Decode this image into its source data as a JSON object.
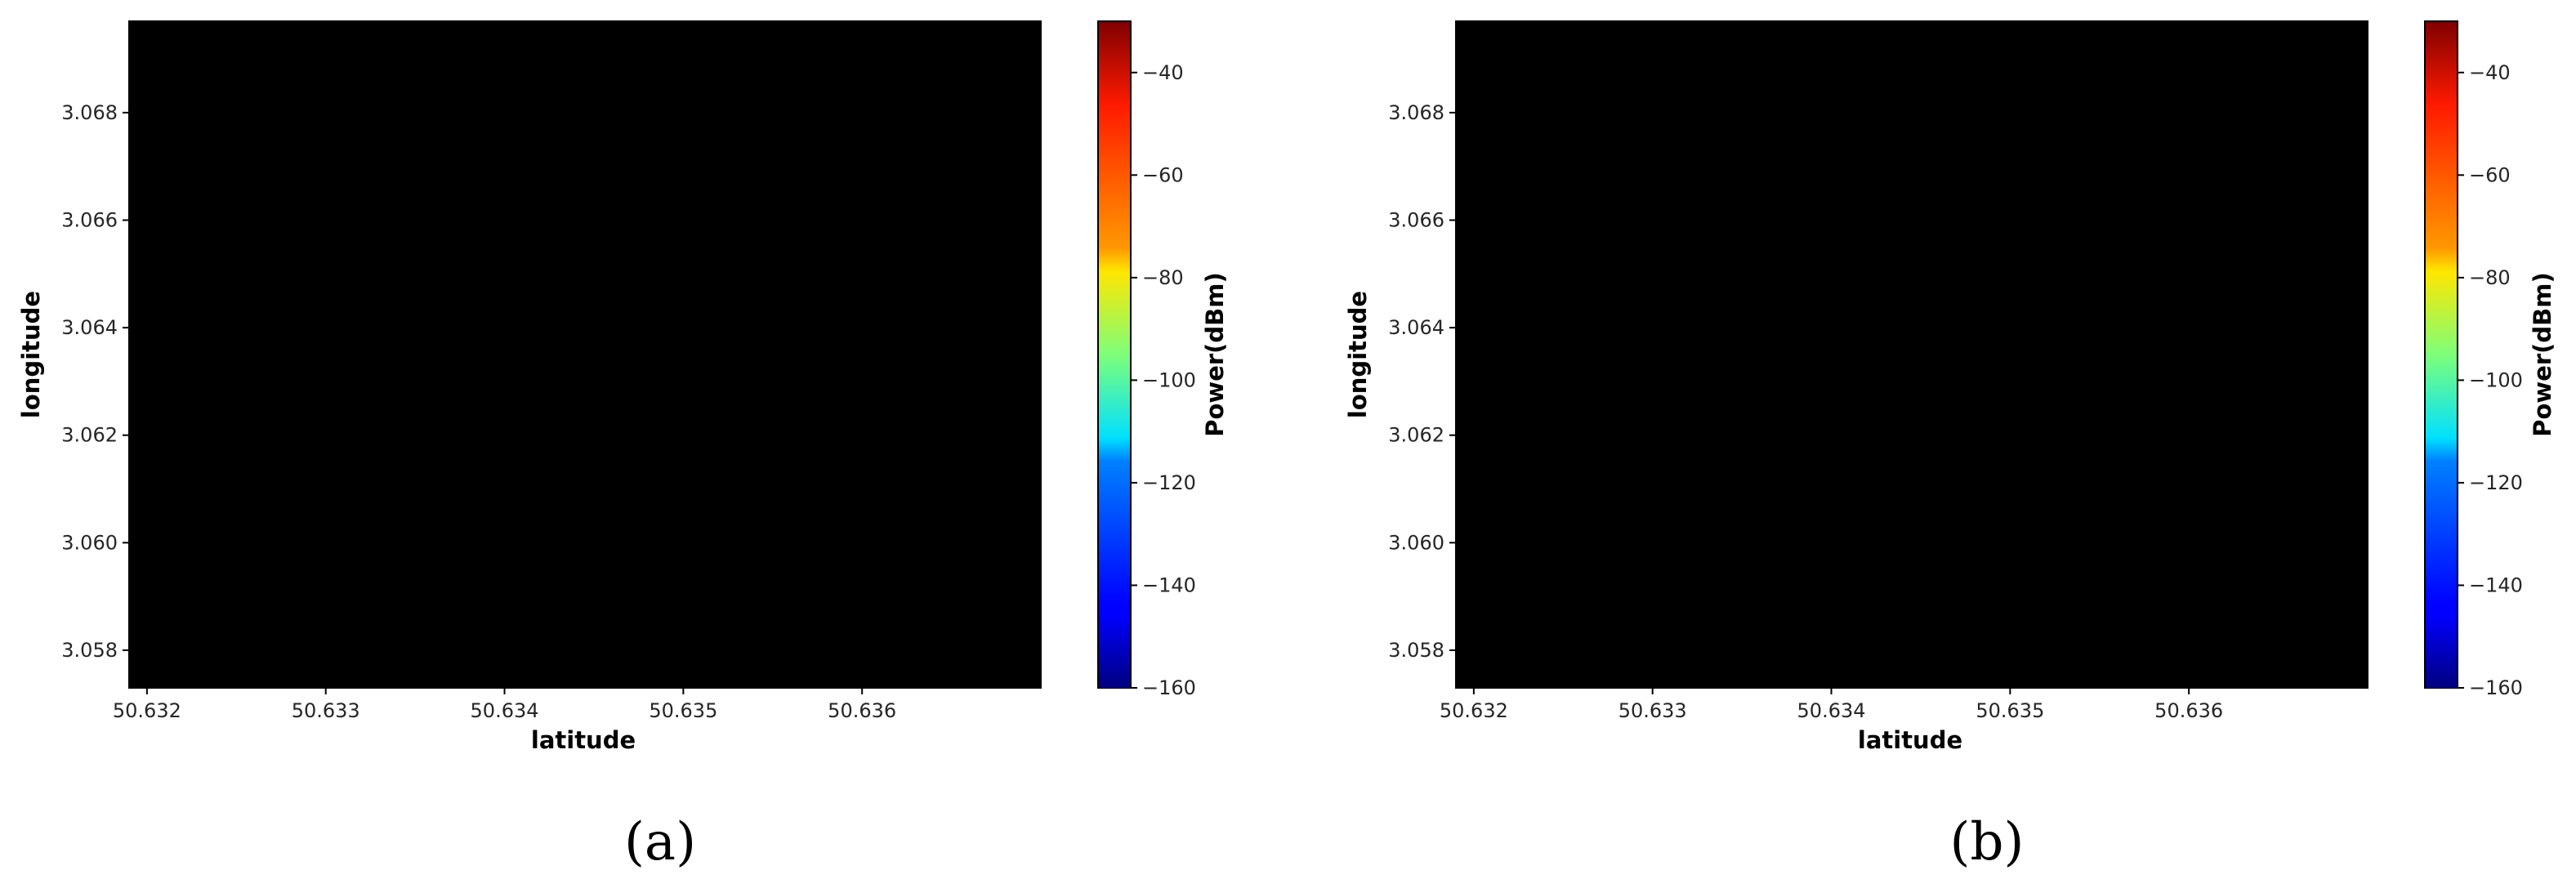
{
  "chart_data": [
    {
      "type": "heatmap",
      "caption": "(a)",
      "title": "",
      "xlabel": "latitude",
      "ylabel": "longitude",
      "x_ticks": [
        "50.632",
        "50.633",
        "50.634",
        "50.635",
        "50.636"
      ],
      "y_ticks": [
        "3.068",
        "3.066",
        "3.064",
        "3.062",
        "3.060",
        "3.058"
      ],
      "xlim": [
        50.6319,
        50.637
      ],
      "ylim": [
        3.0573,
        3.0697
      ],
      "colorbar": {
        "label": "Power(dBm)",
        "ticks": [
          "-40",
          "-60",
          "-80",
          "-100",
          "-120",
          "-140",
          "-160"
        ],
        "range": [
          -160,
          -30
        ],
        "colormap": "jet"
      }
    },
    {
      "type": "heatmap",
      "caption": "(b)",
      "title": "",
      "xlabel": "latitude",
      "ylabel": "longitude",
      "x_ticks": [
        "50.632",
        "50.633",
        "50.634",
        "50.635",
        "50.636"
      ],
      "y_ticks": [
        "3.068",
        "3.066",
        "3.064",
        "3.062",
        "3.060",
        "3.058"
      ],
      "xlim": [
        50.6319,
        50.637
      ],
      "ylim": [
        3.0573,
        3.0697
      ],
      "colorbar": {
        "label": "Power(dBm)",
        "ticks": [
          "-40",
          "-60",
          "-80",
          "-100",
          "-120",
          "-140",
          "-160"
        ],
        "range": [
          -160,
          -30
        ],
        "colormap": "jet"
      }
    }
  ]
}
